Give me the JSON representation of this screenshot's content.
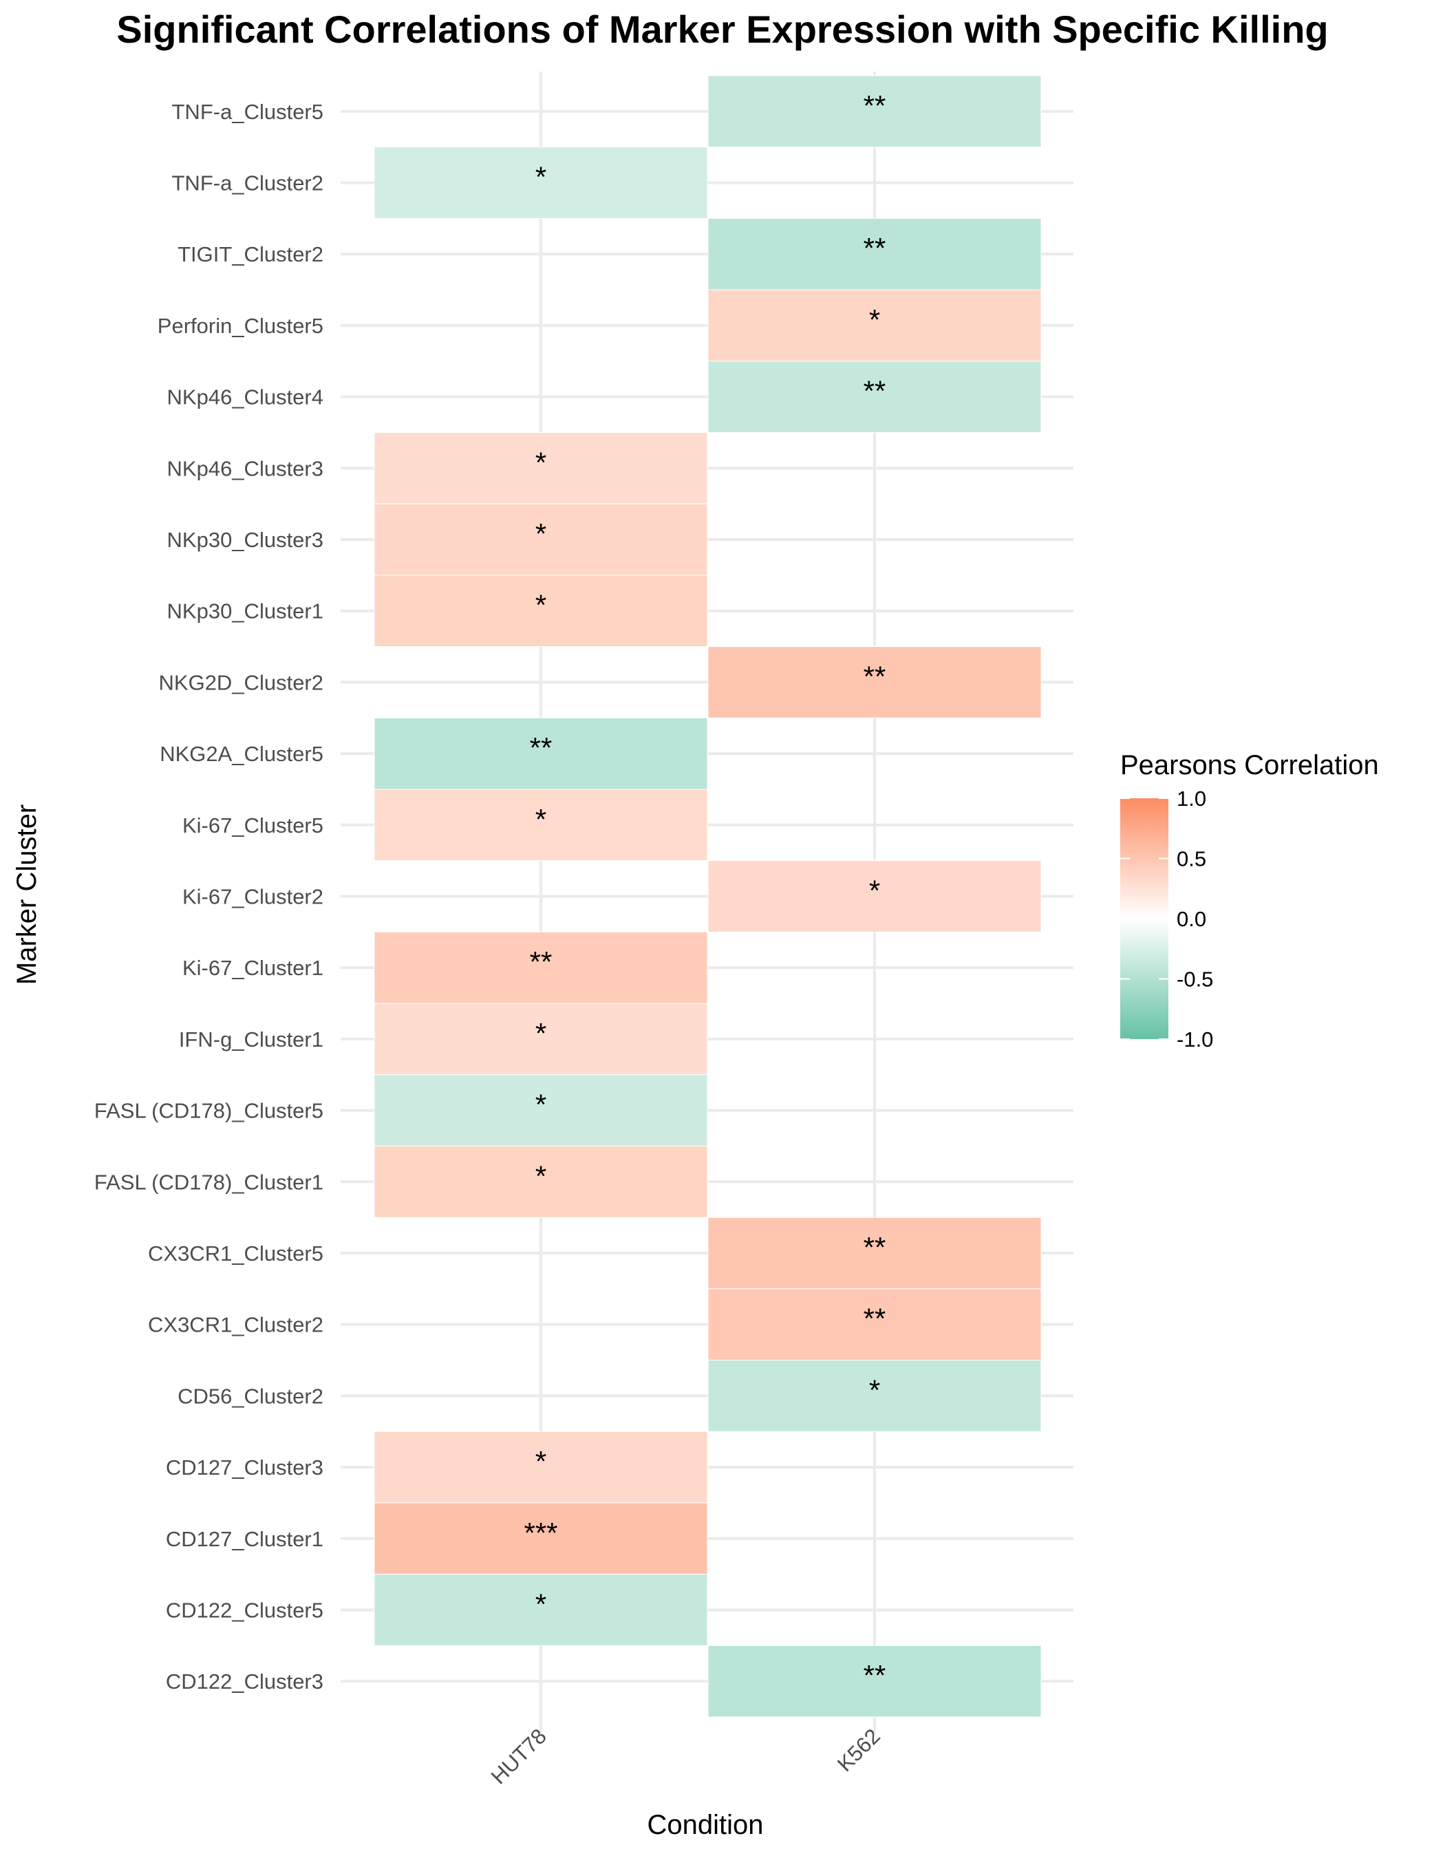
{
  "chart_data": {
    "type": "heatmap",
    "title": "Significant Correlations of Marker Expression with Specific Killing",
    "xlabel": "Condition",
    "ylabel": "Marker Cluster",
    "x": [
      "HUT78",
      "K562"
    ],
    "y": [
      "TNF-a_Cluster5",
      "TNF-a_Cluster2",
      "TIGIT_Cluster2",
      "Perforin_Cluster5",
      "NKp46_Cluster4",
      "NKp46_Cluster3",
      "NKp30_Cluster3",
      "NKp30_Cluster1",
      "NKG2D_Cluster2",
      "NKG2A_Cluster5",
      "Ki-67_Cluster5",
      "Ki-67_Cluster2",
      "Ki-67_Cluster1",
      "IFN-g_Cluster1",
      "FASL (CD178)_Cluster5",
      "FASL (CD178)_Cluster1",
      "CX3CR1_Cluster5",
      "CX3CR1_Cluster2",
      "CD56_Cluster2",
      "CD127_Cluster3",
      "CD127_Cluster1",
      "CD122_Cluster5",
      "CD122_Cluster3"
    ],
    "cells": [
      {
        "y": "TNF-a_Cluster5",
        "x": "K562",
        "value": -0.38,
        "label": "**"
      },
      {
        "y": "TNF-a_Cluster2",
        "x": "HUT78",
        "value": -0.3,
        "label": "*"
      },
      {
        "y": "TIGIT_Cluster2",
        "x": "K562",
        "value": -0.45,
        "label": "**"
      },
      {
        "y": "Perforin_Cluster5",
        "x": "K562",
        "value": 0.36,
        "label": "*"
      },
      {
        "y": "NKp46_Cluster4",
        "x": "K562",
        "value": -0.38,
        "label": "**"
      },
      {
        "y": "NKp46_Cluster3",
        "x": "HUT78",
        "value": 0.3,
        "label": "*"
      },
      {
        "y": "NKp30_Cluster3",
        "x": "HUT78",
        "value": 0.35,
        "label": "*"
      },
      {
        "y": "NKp30_Cluster1",
        "x": "HUT78",
        "value": 0.38,
        "label": "*"
      },
      {
        "y": "NKG2D_Cluster2",
        "x": "K562",
        "value": 0.5,
        "label": "**"
      },
      {
        "y": "NKG2A_Cluster5",
        "x": "HUT78",
        "value": -0.45,
        "label": "**"
      },
      {
        "y": "Ki-67_Cluster5",
        "x": "HUT78",
        "value": 0.32,
        "label": "*"
      },
      {
        "y": "Ki-67_Cluster2",
        "x": "K562",
        "value": 0.34,
        "label": "*"
      },
      {
        "y": "Ki-67_Cluster1",
        "x": "HUT78",
        "value": 0.45,
        "label": "**"
      },
      {
        "y": "IFN-g_Cluster1",
        "x": "HUT78",
        "value": 0.3,
        "label": "*"
      },
      {
        "y": "FASL (CD178)_Cluster5",
        "x": "HUT78",
        "value": -0.33,
        "label": "*"
      },
      {
        "y": "FASL (CD178)_Cluster1",
        "x": "HUT78",
        "value": 0.38,
        "label": "*"
      },
      {
        "y": "CX3CR1_Cluster5",
        "x": "K562",
        "value": 0.5,
        "label": "**"
      },
      {
        "y": "CX3CR1_Cluster2",
        "x": "K562",
        "value": 0.48,
        "label": "**"
      },
      {
        "y": "CD56_Cluster2",
        "x": "K562",
        "value": -0.38,
        "label": "*"
      },
      {
        "y": "CD127_Cluster3",
        "x": "HUT78",
        "value": 0.34,
        "label": "*"
      },
      {
        "y": "CD127_Cluster1",
        "x": "HUT78",
        "value": 0.55,
        "label": "***"
      },
      {
        "y": "CD122_Cluster5",
        "x": "HUT78",
        "value": -0.38,
        "label": "*"
      },
      {
        "y": "CD122_Cluster3",
        "x": "K562",
        "value": -0.45,
        "label": "**"
      }
    ],
    "color_scale": {
      "low": "#66c2a5",
      "mid": "#ffffff",
      "high": "#fc8d62",
      "limits": [
        -1,
        1
      ]
    },
    "legend": {
      "title": "Pearsons Correlation",
      "ticks": [
        1.0,
        0.5,
        0.0,
        -0.5,
        -1.0
      ],
      "tick_labels": [
        "1.0",
        "0.5",
        "0.0",
        "-0.5",
        "-1.0"
      ],
      "position": "right"
    },
    "grid": true
  }
}
